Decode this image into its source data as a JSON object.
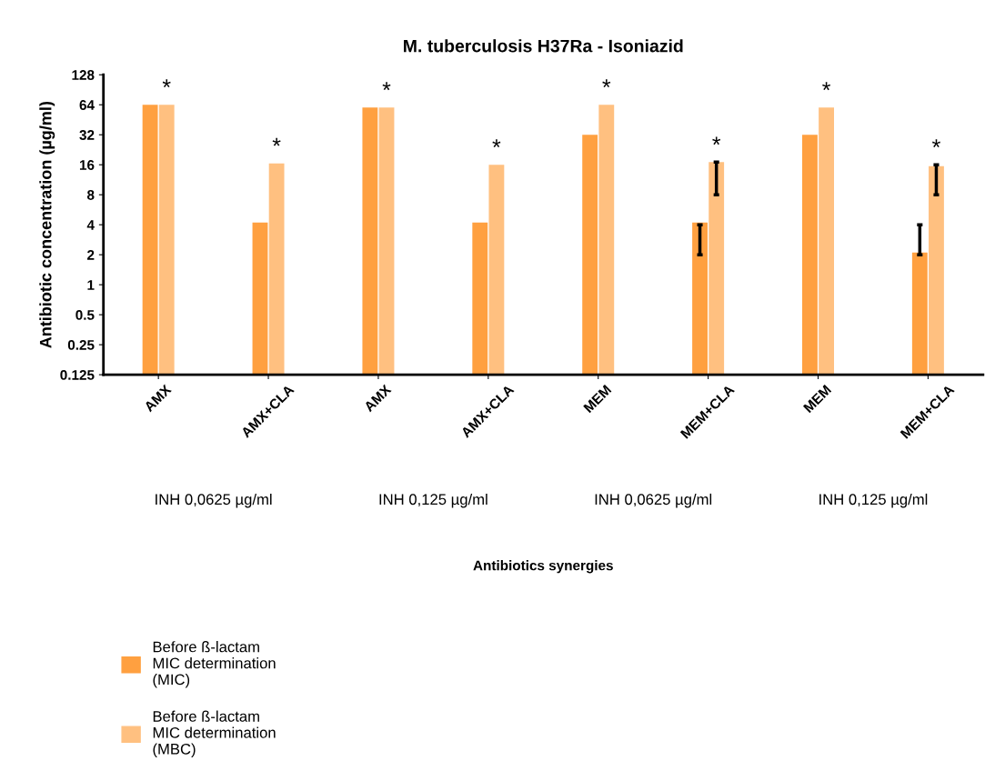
{
  "chart_data": {
    "type": "bar",
    "title": "M. tuberculosis H37Ra - Isoniazid",
    "ylabel": "Antibiotic concentration (µg/ml)",
    "categories": [
      "AMX",
      "AMX+CLA",
      "AMX",
      "AMX+CLA",
      "MEM",
      "MEM+CLA",
      "MEM",
      "MEM+CLA"
    ],
    "series": [
      {
        "name": "Before ß-lactam MIC determination (MIC)",
        "color": "#ffa040",
        "values": [
          64,
          4.2,
          60,
          4.2,
          32,
          4.2,
          32,
          2.1
        ],
        "errors": [
          null,
          null,
          null,
          null,
          null,
          [
            2,
            4
          ],
          null,
          [
            2,
            4
          ]
        ]
      },
      {
        "name": "Before ß-lactam MIC determination (MBC)",
        "color": "#ffc080",
        "values": [
          64,
          16.5,
          60,
          16,
          64,
          17,
          60,
          15.5
        ],
        "errors": [
          null,
          null,
          null,
          null,
          null,
          [
            8,
            17
          ],
          null,
          [
            8,
            16
          ]
        ],
        "value_labels": [
          "*",
          "*",
          "*",
          "*",
          "*",
          "*",
          "*",
          "*"
        ]
      }
    ],
    "log": "y",
    "ylim": [
      0.125,
      128
    ],
    "yticks": [
      0.125,
      0.25,
      0.5,
      1,
      2,
      4,
      8,
      16,
      32,
      64,
      128
    ],
    "grid": false,
    "legend": "bottom",
    "annotations": [
      "INH 0,0625 µg/ml",
      "INH 0,125 µg/ml",
      "INH 0,0625 µg/ml",
      "INH 0,125 µg/ml",
      "Antibiotics synergies"
    ]
  }
}
